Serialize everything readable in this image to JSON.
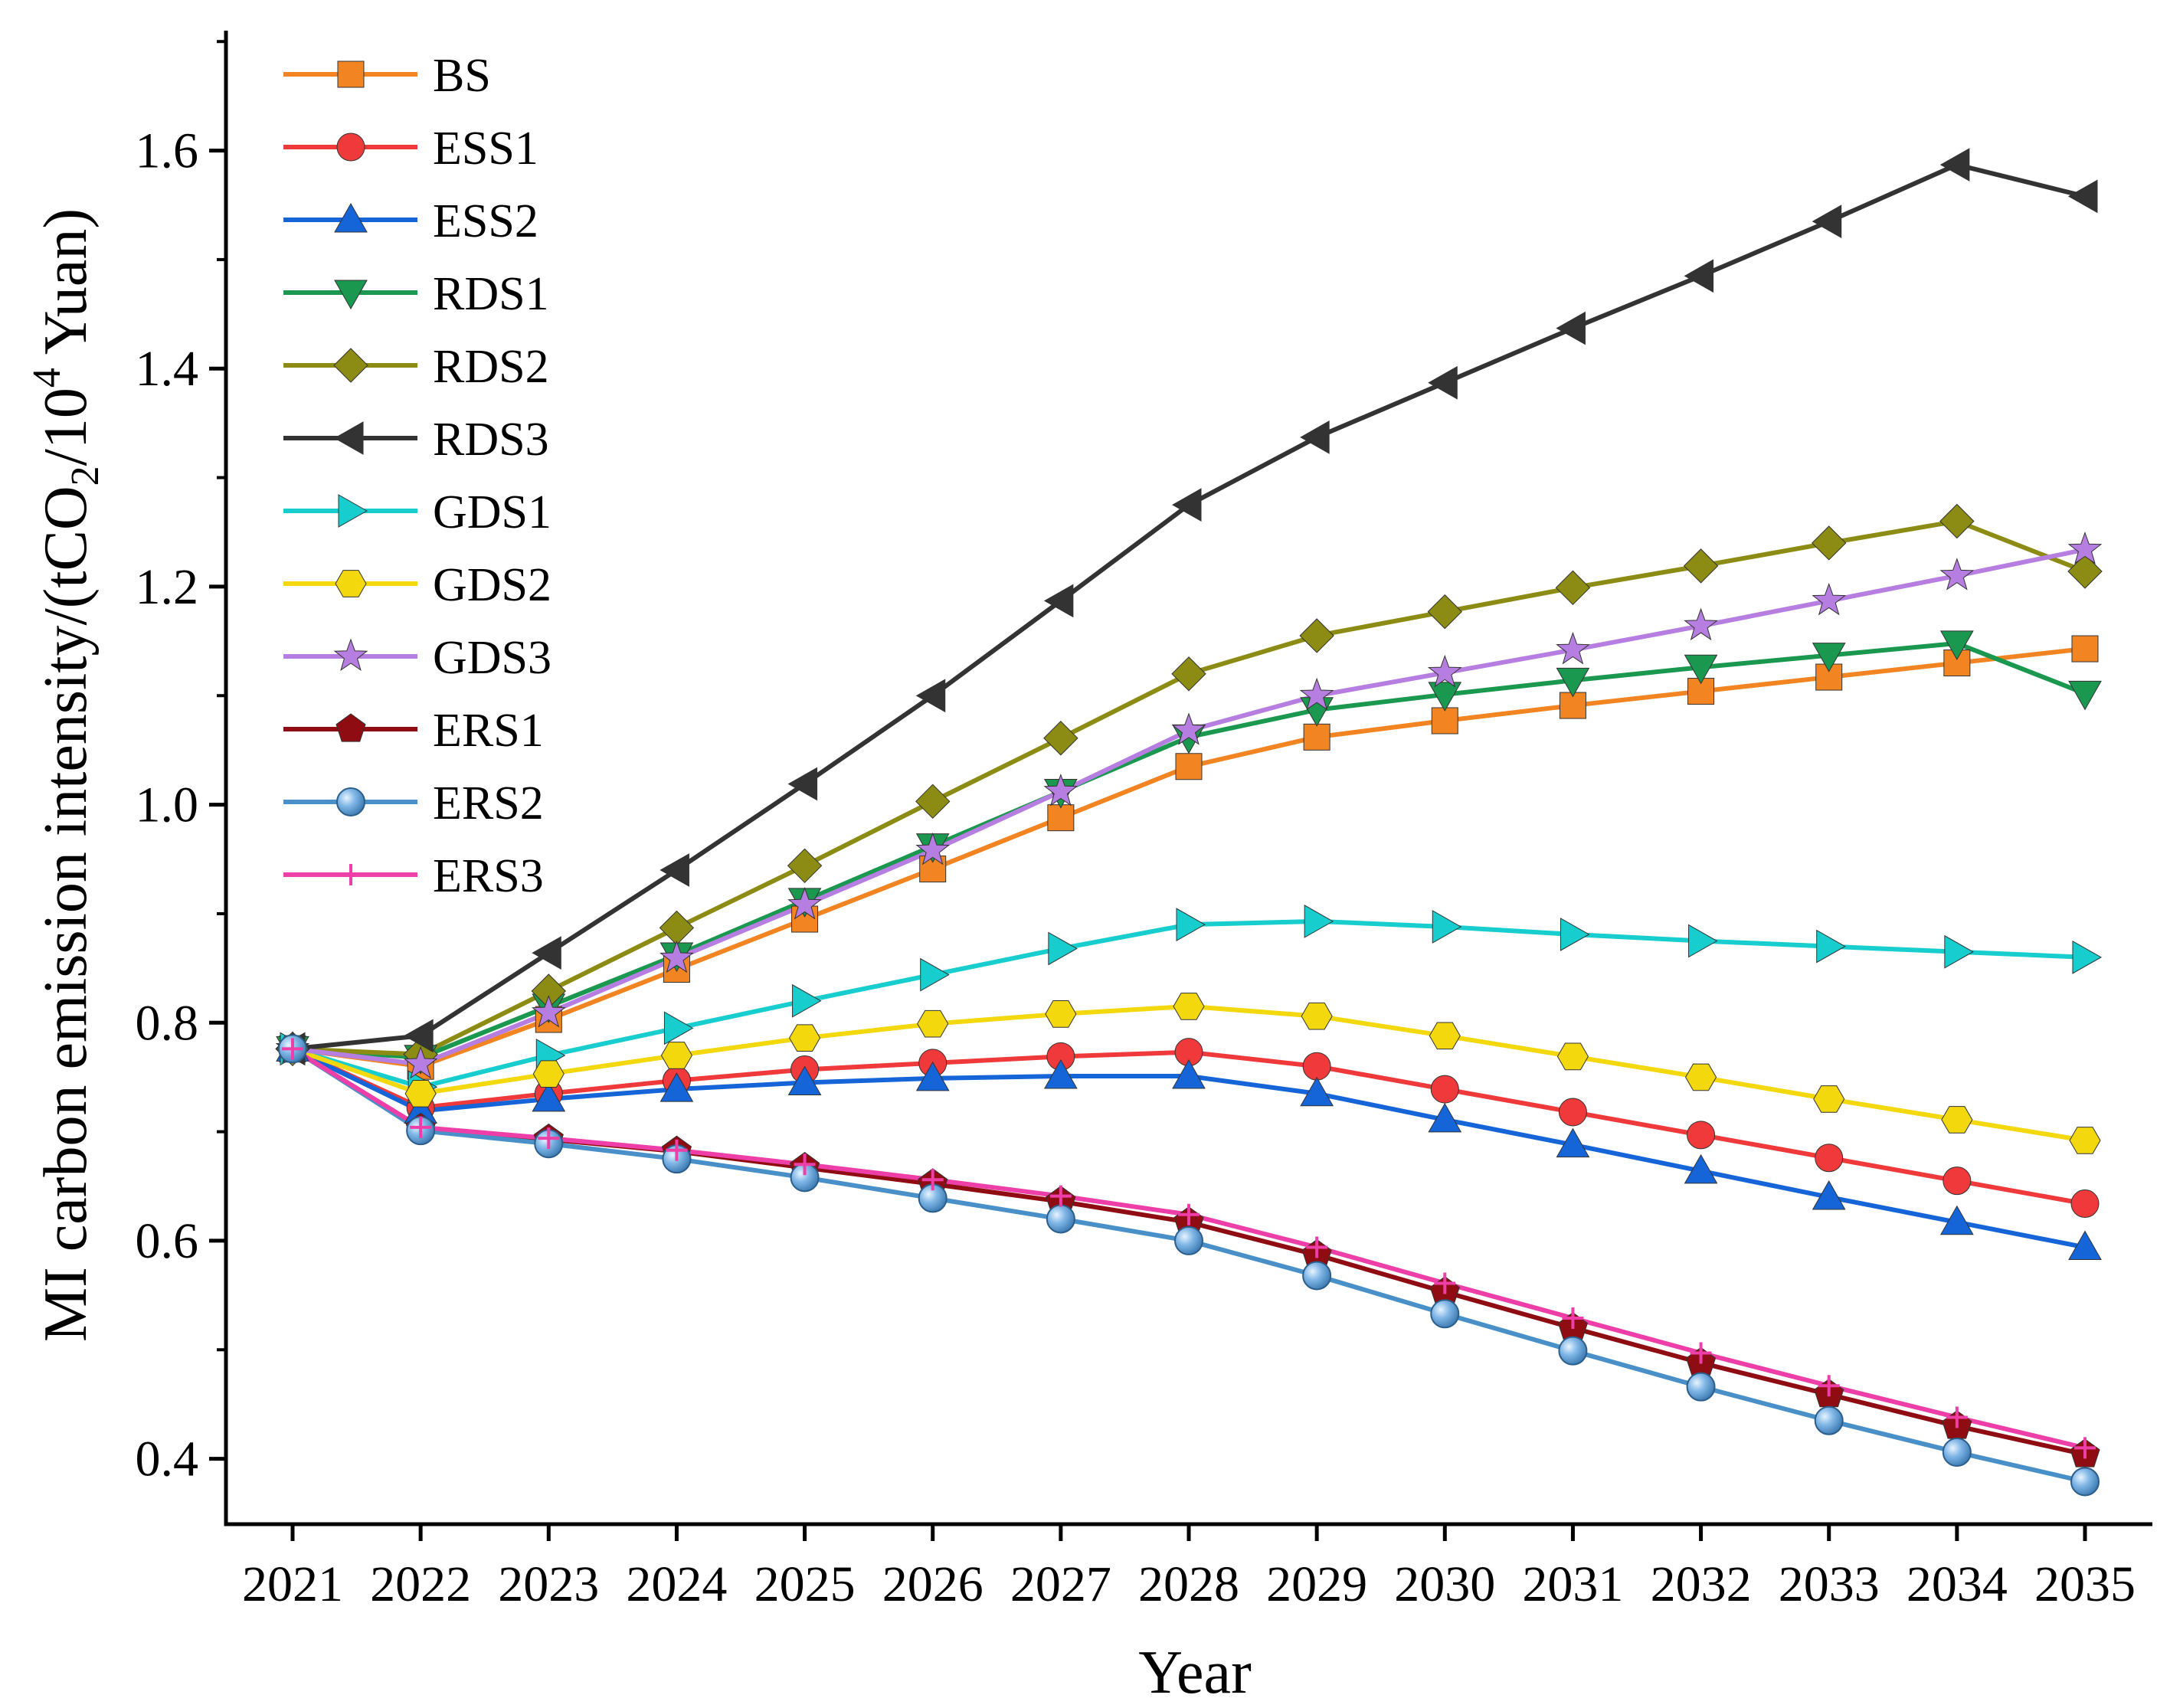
{
  "chart_data": {
    "type": "line",
    "title": "",
    "xlabel": "Year",
    "ylabel": {
      "prefix": "MI carbon emission intensity/(tCO",
      "sub": "2",
      "mid": "/10",
      "sup": "4",
      "suffix": " Yuan)"
    },
    "x": [
      "2021",
      "2022",
      "2023",
      "2024",
      "2025",
      "2026",
      "2027",
      "2028",
      "2029",
      "2030",
      "2031",
      "2032",
      "2033",
      "2034",
      "2035"
    ],
    "ylim": [
      0.34,
      1.71
    ],
    "yticks": [
      "0.4",
      "0.6",
      "0.8",
      "1.0",
      "1.2",
      "1.4",
      "1.6"
    ],
    "grid": false,
    "legend_position": "top-left",
    "series": [
      {
        "name": "BS",
        "color": "#F28522",
        "marker": "square",
        "values": [
          0.776,
          0.76,
          0.803,
          0.849,
          0.895,
          0.941,
          0.988,
          1.035,
          1.062,
          1.077,
          1.091,
          1.104,
          1.117,
          1.13,
          1.143
        ]
      },
      {
        "name": "ESS1",
        "color": "#F0393A",
        "marker": "circle",
        "values": [
          0.776,
          0.722,
          0.735,
          0.747,
          0.757,
          0.763,
          0.769,
          0.773,
          0.76,
          0.739,
          0.718,
          0.697,
          0.676,
          0.655,
          0.634
        ]
      },
      {
        "name": "ESS2",
        "color": "#1565D8",
        "marker": "triangle-up",
        "values": [
          0.776,
          0.719,
          0.73,
          0.739,
          0.745,
          0.749,
          0.751,
          0.751,
          0.735,
          0.711,
          0.688,
          0.664,
          0.64,
          0.617,
          0.594
        ]
      },
      {
        "name": "RDS1",
        "color": "#1A9850",
        "marker": "triangle-down",
        "values": [
          0.776,
          0.768,
          0.815,
          0.862,
          0.912,
          0.962,
          1.012,
          1.062,
          1.087,
          1.101,
          1.114,
          1.126,
          1.137,
          1.148,
          1.102
        ]
      },
      {
        "name": "RDS2",
        "color": "#8C8C14",
        "marker": "diamond",
        "values": [
          0.776,
          0.771,
          0.829,
          0.887,
          0.944,
          1.003,
          1.061,
          1.12,
          1.155,
          1.177,
          1.199,
          1.219,
          1.24,
          1.26,
          1.214
        ]
      },
      {
        "name": "RDS3",
        "color": "#333333",
        "marker": "triangle-left",
        "values": [
          0.776,
          0.788,
          0.864,
          0.94,
          1.019,
          1.1,
          1.187,
          1.275,
          1.337,
          1.387,
          1.437,
          1.485,
          1.535,
          1.587,
          1.558
        ]
      },
      {
        "name": "GDS1",
        "color": "#17CDCD",
        "marker": "triangle-right",
        "values": [
          0.776,
          0.741,
          0.77,
          0.795,
          0.82,
          0.844,
          0.868,
          0.89,
          0.893,
          0.888,
          0.881,
          0.875,
          0.87,
          0.865,
          0.86
        ]
      },
      {
        "name": "GDS2",
        "color": "#F2D80C",
        "marker": "hexagon",
        "values": [
          0.776,
          0.735,
          0.753,
          0.77,
          0.786,
          0.799,
          0.808,
          0.815,
          0.806,
          0.788,
          0.769,
          0.75,
          0.73,
          0.711,
          0.692
        ]
      },
      {
        "name": "GDS3",
        "color": "#B67EE0",
        "marker": "star",
        "values": [
          0.776,
          0.762,
          0.809,
          0.859,
          0.908,
          0.958,
          1.012,
          1.068,
          1.1,
          1.121,
          1.142,
          1.164,
          1.187,
          1.21,
          1.234
        ]
      },
      {
        "name": "ERS1",
        "color": "#8E0C12",
        "marker": "pentagon",
        "values": [
          0.776,
          0.703,
          0.693,
          0.682,
          0.667,
          0.652,
          0.636,
          0.617,
          0.587,
          0.553,
          0.52,
          0.488,
          0.459,
          0.43,
          0.404
        ]
      },
      {
        "name": "ERS2",
        "color": "#4A90C8",
        "marker": "sphere",
        "values": [
          0.776,
          0.701,
          0.689,
          0.675,
          0.658,
          0.639,
          0.62,
          0.6,
          0.568,
          0.533,
          0.499,
          0.466,
          0.435,
          0.406,
          0.379
        ]
      },
      {
        "name": "ERS3",
        "color": "#EE3FA8",
        "marker": "plus",
        "values": [
          0.776,
          0.704,
          0.694,
          0.683,
          0.67,
          0.656,
          0.641,
          0.624,
          0.594,
          0.561,
          0.529,
          0.497,
          0.467,
          0.438,
          0.41
        ]
      }
    ]
  }
}
